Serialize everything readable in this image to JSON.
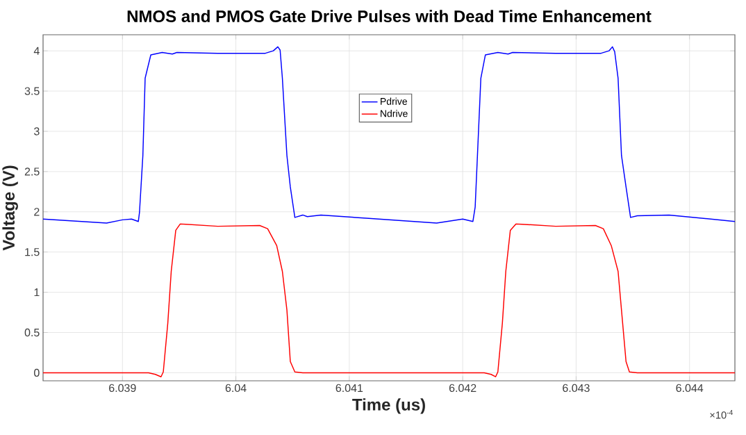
{
  "chart_data": {
    "type": "line",
    "title": "NMOS and PMOS Gate Drive Pulses with Dead Time Enhancement",
    "xlabel": "Time (us)",
    "ylabel": "Voltage (V)",
    "annotations": [
      "×10$^{-4}$"
    ],
    "xlim": [
      6.0383,
      6.0444
    ],
    "xticks": [
      6.039,
      6.04,
      6.041,
      6.042,
      6.043,
      6.044
    ],
    "ylim": [
      -0.1,
      4.2
    ],
    "yticks": [
      0,
      0.5,
      1,
      1.5,
      2,
      2.5,
      3,
      3.5,
      4
    ],
    "grid": true,
    "legend": "top",
    "marker": "none",
    "line_style": "solid",
    "series": [
      {
        "name": "Pdrive",
        "color": "#0000ff",
        "x": [
          6.0383,
          6.03886,
          6.039,
          6.03908,
          6.03914,
          6.03915,
          6.03918,
          6.0392,
          6.03925,
          6.03935,
          6.03944,
          6.03948,
          6.03984,
          6.04026,
          6.04033,
          6.04037,
          6.04039,
          6.04041,
          6.04045,
          6.04048,
          6.04052,
          6.04059,
          6.04063,
          6.04075,
          6.04115,
          6.04177,
          6.042,
          6.04209,
          6.04211,
          6.04213,
          6.04216,
          6.0422,
          6.04231,
          6.0424,
          6.04244,
          6.04282,
          6.04322,
          6.04329,
          6.04332,
          6.04334,
          6.04337,
          6.0434,
          6.04344,
          6.04348,
          6.04354,
          6.04382,
          6.0444
        ],
        "values": [
          1.91,
          1.86,
          1.9,
          1.91,
          1.88,
          1.99,
          2.7,
          3.66,
          3.95,
          3.98,
          3.96,
          3.98,
          3.97,
          3.97,
          4.0,
          4.05,
          4.01,
          3.66,
          2.7,
          2.31,
          1.93,
          1.96,
          1.94,
          1.96,
          1.92,
          1.86,
          1.91,
          1.88,
          2.06,
          2.7,
          3.66,
          3.95,
          3.98,
          3.96,
          3.98,
          3.97,
          3.97,
          4.0,
          4.05,
          3.99,
          3.66,
          2.7,
          2.31,
          1.93,
          1.95,
          1.96,
          1.88
        ]
      },
      {
        "name": "Ndrive",
        "color": "#ff0000",
        "x": [
          6.0383,
          6.03923,
          6.03929,
          6.03934,
          6.03936,
          6.0394,
          6.03943,
          6.03947,
          6.03951,
          6.03984,
          6.04021,
          6.04028,
          6.04036,
          6.04041,
          6.04045,
          6.04048,
          6.04052,
          6.04059,
          6.04107,
          6.04219,
          6.04225,
          6.04229,
          6.04231,
          6.04235,
          6.04238,
          6.04242,
          6.04247,
          6.04282,
          6.04317,
          6.04324,
          6.04331,
          6.04337,
          6.0434,
          6.04344,
          6.04347,
          6.04354,
          6.0444
        ],
        "values": [
          0,
          0,
          -0.02,
          -0.05,
          0.01,
          0.62,
          1.26,
          1.77,
          1.85,
          1.82,
          1.83,
          1.79,
          1.58,
          1.26,
          0.78,
          0.14,
          0.01,
          0,
          0,
          0,
          -0.02,
          -0.05,
          0.01,
          0.62,
          1.26,
          1.77,
          1.85,
          1.82,
          1.83,
          1.79,
          1.58,
          1.26,
          0.78,
          0.14,
          0.01,
          0,
          0
        ]
      }
    ]
  }
}
